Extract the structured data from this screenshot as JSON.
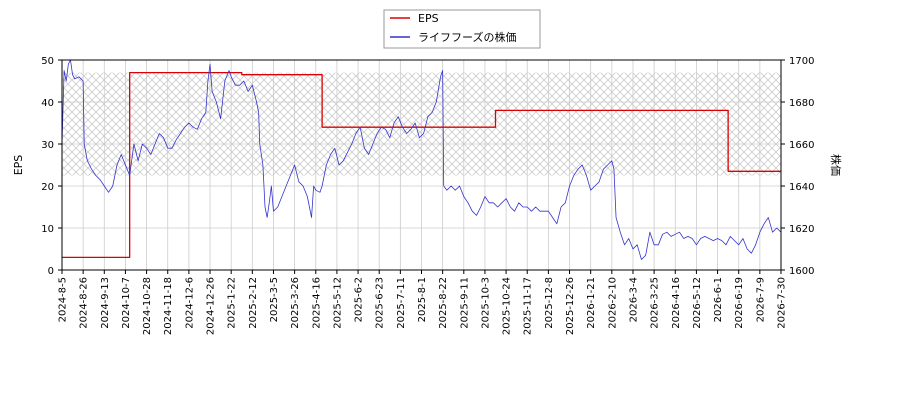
{
  "chart_data": {
    "type": "line",
    "grid": true,
    "legend_position": "top-center",
    "x_ticks": [
      "2024-8-5",
      "2024-8-26",
      "2024-9-13",
      "2024-10-7",
      "2024-10-28",
      "2024-11-18",
      "2024-12-6",
      "2024-12-26",
      "2025-1-22",
      "2025-2-12",
      "2025-3-5",
      "2025-3-26",
      "2025-4-16",
      "2025-5-12",
      "2025-6-2",
      "2025-6-23",
      "2025-7-11",
      "2025-8-1",
      "2025-8-22",
      "2025-9-11",
      "2025-10-3",
      "2025-10-24",
      "2025-11-17",
      "2025-12-8",
      "2025-12-26",
      "2026-1-21",
      "2026-2-10",
      "2026-3-4",
      "2026-3-25",
      "2026-4-16",
      "2026-5-12",
      "2026-6-1",
      "2026-6-19",
      "2026-7-9",
      "2026-7-30"
    ],
    "y_left": {
      "label": "EPS",
      "ylim": [
        0,
        50
      ],
      "ticks": [
        0,
        10,
        20,
        30,
        40,
        50
      ]
    },
    "y_right": {
      "label": "株価",
      "ylim": [
        1600,
        1700
      ],
      "ticks": [
        1600,
        1620,
        1640,
        1660,
        1680,
        1700
      ]
    },
    "hatch_band": {
      "ylim_left": [
        22.5,
        47
      ]
    },
    "series": [
      {
        "name": "EPS",
        "axis": "left",
        "color": "#dd0000",
        "points": [
          [
            0,
            3
          ],
          [
            3.2,
            3
          ],
          [
            3.2,
            47
          ],
          [
            5,
            47
          ],
          [
            8.5,
            47
          ],
          [
            8.5,
            46.5
          ],
          [
            12.3,
            46.5
          ],
          [
            12.3,
            34
          ],
          [
            20.5,
            34
          ],
          [
            20.5,
            38
          ],
          [
            31.5,
            38
          ],
          [
            31.5,
            23.5
          ],
          [
            34,
            23.5
          ]
        ]
      },
      {
        "name": "ライフフーズの株価",
        "axis": "right",
        "color": "#3333cc",
        "points": [
          [
            0,
            1660
          ],
          [
            0.1,
            1695
          ],
          [
            0.2,
            1690
          ],
          [
            0.3,
            1698
          ],
          [
            0.4,
            1700
          ],
          [
            0.5,
            1693
          ],
          [
            0.6,
            1691
          ],
          [
            0.8,
            1692
          ],
          [
            1.0,
            1690
          ],
          [
            1.05,
            1660
          ],
          [
            1.2,
            1652
          ],
          [
            1.4,
            1648
          ],
          [
            1.6,
            1645
          ],
          [
            1.8,
            1643
          ],
          [
            2.0,
            1640
          ],
          [
            2.2,
            1637
          ],
          [
            2.4,
            1640
          ],
          [
            2.6,
            1650
          ],
          [
            2.8,
            1655
          ],
          [
            3.0,
            1650
          ],
          [
            3.2,
            1645
          ],
          [
            3.4,
            1660
          ],
          [
            3.6,
            1652
          ],
          [
            3.8,
            1660
          ],
          [
            4.0,
            1658
          ],
          [
            4.2,
            1655
          ],
          [
            4.4,
            1660
          ],
          [
            4.6,
            1665
          ],
          [
            4.8,
            1663
          ],
          [
            5.0,
            1658
          ],
          [
            5.2,
            1658
          ],
          [
            5.4,
            1662
          ],
          [
            5.6,
            1665
          ],
          [
            5.8,
            1668
          ],
          [
            6.0,
            1670
          ],
          [
            6.2,
            1668
          ],
          [
            6.4,
            1667
          ],
          [
            6.6,
            1672
          ],
          [
            6.8,
            1675
          ],
          [
            6.9,
            1690
          ],
          [
            7.0,
            1698
          ],
          [
            7.1,
            1685
          ],
          [
            7.3,
            1680
          ],
          [
            7.5,
            1672
          ],
          [
            7.7,
            1690
          ],
          [
            7.9,
            1695
          ],
          [
            8.0,
            1692
          ],
          [
            8.2,
            1688
          ],
          [
            8.4,
            1688
          ],
          [
            8.6,
            1690
          ],
          [
            8.8,
            1685
          ],
          [
            9.0,
            1688
          ],
          [
            9.2,
            1680
          ],
          [
            9.3,
            1675
          ],
          [
            9.35,
            1660
          ],
          [
            9.5,
            1650
          ],
          [
            9.6,
            1630
          ],
          [
            9.7,
            1625
          ],
          [
            9.8,
            1632
          ],
          [
            9.9,
            1640
          ],
          [
            10.0,
            1628
          ],
          [
            10.2,
            1630
          ],
          [
            10.4,
            1635
          ],
          [
            10.6,
            1640
          ],
          [
            10.8,
            1645
          ],
          [
            11.0,
            1650
          ],
          [
            11.2,
            1642
          ],
          [
            11.4,
            1640
          ],
          [
            11.6,
            1635
          ],
          [
            11.8,
            1625
          ],
          [
            11.9,
            1640
          ],
          [
            12.0,
            1638
          ],
          [
            12.2,
            1637
          ],
          [
            12.3,
            1640
          ],
          [
            12.5,
            1650
          ],
          [
            12.7,
            1655
          ],
          [
            12.9,
            1658
          ],
          [
            13.1,
            1650
          ],
          [
            13.3,
            1652
          ],
          [
            13.5,
            1656
          ],
          [
            13.7,
            1660
          ],
          [
            13.9,
            1665
          ],
          [
            14.1,
            1668
          ],
          [
            14.3,
            1658
          ],
          [
            14.5,
            1655
          ],
          [
            14.7,
            1660
          ],
          [
            14.9,
            1665
          ],
          [
            15.1,
            1668
          ],
          [
            15.3,
            1667
          ],
          [
            15.5,
            1663
          ],
          [
            15.7,
            1670
          ],
          [
            15.9,
            1673
          ],
          [
            16.1,
            1668
          ],
          [
            16.3,
            1665
          ],
          [
            16.5,
            1667
          ],
          [
            16.7,
            1670
          ],
          [
            16.9,
            1663
          ],
          [
            17.1,
            1665
          ],
          [
            17.3,
            1673
          ],
          [
            17.5,
            1675
          ],
          [
            17.7,
            1680
          ],
          [
            17.9,
            1692
          ],
          [
            18.0,
            1695
          ],
          [
            18.05,
            1640
          ],
          [
            18.2,
            1638
          ],
          [
            18.4,
            1640
          ],
          [
            18.6,
            1638
          ],
          [
            18.8,
            1640
          ],
          [
            19.0,
            1635
          ],
          [
            19.2,
            1632
          ],
          [
            19.4,
            1628
          ],
          [
            19.6,
            1626
          ],
          [
            19.8,
            1630
          ],
          [
            20.0,
            1635
          ],
          [
            20.2,
            1632
          ],
          [
            20.4,
            1632
          ],
          [
            20.6,
            1630
          ],
          [
            20.8,
            1632
          ],
          [
            21.0,
            1634
          ],
          [
            21.2,
            1630
          ],
          [
            21.4,
            1628
          ],
          [
            21.6,
            1632
          ],
          [
            21.8,
            1630
          ],
          [
            22.0,
            1630
          ],
          [
            22.2,
            1628
          ],
          [
            22.4,
            1630
          ],
          [
            22.6,
            1628
          ],
          [
            22.8,
            1628
          ],
          [
            23.0,
            1628
          ],
          [
            23.2,
            1625
          ],
          [
            23.4,
            1622
          ],
          [
            23.6,
            1630
          ],
          [
            23.8,
            1632
          ],
          [
            24.0,
            1640
          ],
          [
            24.2,
            1645
          ],
          [
            24.4,
            1648
          ],
          [
            24.6,
            1650
          ],
          [
            24.8,
            1645
          ],
          [
            25.0,
            1638
          ],
          [
            25.2,
            1640
          ],
          [
            25.4,
            1642
          ],
          [
            25.6,
            1648
          ],
          [
            25.8,
            1650
          ],
          [
            26.0,
            1652
          ],
          [
            26.1,
            1648
          ],
          [
            26.2,
            1625
          ],
          [
            26.4,
            1618
          ],
          [
            26.6,
            1612
          ],
          [
            26.8,
            1615
          ],
          [
            27.0,
            1610
          ],
          [
            27.2,
            1612
          ],
          [
            27.4,
            1605
          ],
          [
            27.6,
            1607
          ],
          [
            27.8,
            1618
          ],
          [
            28.0,
            1612
          ],
          [
            28.2,
            1612
          ],
          [
            28.4,
            1617
          ],
          [
            28.6,
            1618
          ],
          [
            28.8,
            1616
          ],
          [
            29.0,
            1617
          ],
          [
            29.2,
            1618
          ],
          [
            29.4,
            1615
          ],
          [
            29.6,
            1616
          ],
          [
            29.8,
            1615
          ],
          [
            30.0,
            1612
          ],
          [
            30.2,
            1615
          ],
          [
            30.4,
            1616
          ],
          [
            30.6,
            1615
          ],
          [
            30.8,
            1614
          ],
          [
            31.0,
            1615
          ],
          [
            31.2,
            1614
          ],
          [
            31.4,
            1612
          ],
          [
            31.6,
            1616
          ],
          [
            31.8,
            1614
          ],
          [
            32.0,
            1612
          ],
          [
            32.2,
            1615
          ],
          [
            32.4,
            1610
          ],
          [
            32.6,
            1608
          ],
          [
            32.8,
            1612
          ],
          [
            33.0,
            1618
          ],
          [
            33.2,
            1622
          ],
          [
            33.4,
            1625
          ],
          [
            33.6,
            1618
          ],
          [
            33.8,
            1620
          ],
          [
            34.0,
            1618
          ]
        ]
      }
    ]
  }
}
